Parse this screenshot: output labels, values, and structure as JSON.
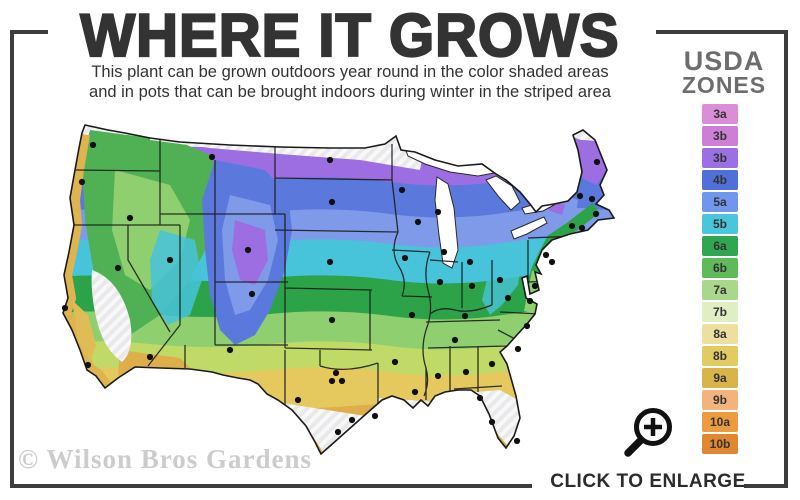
{
  "header": {
    "title": "WHERE IT GROWS",
    "subtitle_line1": "This plant can be grown outdoors year round in the color shaded areas",
    "subtitle_line2": "and in pots that can be brought indoors during winter in the striped area"
  },
  "legend": {
    "title_line1": "USDA",
    "title_line2": "ZONES",
    "zones": [
      {
        "label": "3a",
        "color": "#da8ed8"
      },
      {
        "label": "3b",
        "color": "#cd7fd6"
      },
      {
        "label": "3b",
        "color": "#9b70e2"
      },
      {
        "label": "4b",
        "color": "#5070d8"
      },
      {
        "label": "5a",
        "color": "#7097ec"
      },
      {
        "label": "5b",
        "color": "#4ac6dc"
      },
      {
        "label": "6a",
        "color": "#2fa64f"
      },
      {
        "label": "6b",
        "color": "#5fba5c"
      },
      {
        "label": "7a",
        "color": "#a9d78b"
      },
      {
        "label": "7b",
        "color": "#dfeec3"
      },
      {
        "label": "8a",
        "color": "#ecdf9f"
      },
      {
        "label": "8b",
        "color": "#e3cb63"
      },
      {
        "label": "9a",
        "color": "#d9b44b"
      },
      {
        "label": "9b",
        "color": "#f3b37c"
      },
      {
        "label": "10a",
        "color": "#ec9b3e"
      },
      {
        "label": "10b",
        "color": "#e1872f"
      }
    ]
  },
  "map": {
    "watermark": "© Wilson Bros Gardens",
    "striped_color": "#e9e9eb",
    "dots": [
      [
        63,
        45
      ],
      [
        52,
        82
      ],
      [
        100,
        118
      ],
      [
        182,
        57
      ],
      [
        218,
        150
      ],
      [
        140,
        160
      ],
      [
        88,
        168
      ],
      [
        35,
        208
      ],
      [
        58,
        265
      ],
      [
        120,
        257
      ],
      [
        200,
        250
      ],
      [
        222,
        194
      ],
      [
        300,
        60
      ],
      [
        302,
        102
      ],
      [
        300,
        162
      ],
      [
        302,
        220
      ],
      [
        306,
        273
      ],
      [
        268,
        300
      ],
      [
        302,
        281
      ],
      [
        312,
        281
      ],
      [
        322,
        320
      ],
      [
        345,
        316
      ],
      [
        308,
        332
      ],
      [
        372,
        90
      ],
      [
        388,
        122
      ],
      [
        408,
        112
      ],
      [
        440,
        162
      ],
      [
        375,
        158
      ],
      [
        414,
        152
      ],
      [
        410,
        182
      ],
      [
        442,
        186
      ],
      [
        470,
        180
      ],
      [
        382,
        215
      ],
      [
        435,
        216
      ],
      [
        425,
        240
      ],
      [
        365,
        262
      ],
      [
        385,
        292
      ],
      [
        408,
        276
      ],
      [
        436,
        272
      ],
      [
        462,
        264
      ],
      [
        450,
        298
      ],
      [
        462,
        322
      ],
      [
        487,
        341
      ],
      [
        488,
        249
      ],
      [
        497,
        226
      ],
      [
        500,
        201
      ],
      [
        478,
        198
      ],
      [
        522,
        162
      ],
      [
        542,
        126
      ],
      [
        516,
        155
      ],
      [
        505,
        186
      ],
      [
        552,
        128
      ],
      [
        566,
        114
      ],
      [
        550,
        96
      ],
      [
        562,
        99
      ],
      [
        567,
        62
      ]
    ]
  },
  "footer": {
    "enlarge_label": "CLICK TO ENLARGE",
    "enlarge_icon": "magnifier-plus-icon"
  }
}
